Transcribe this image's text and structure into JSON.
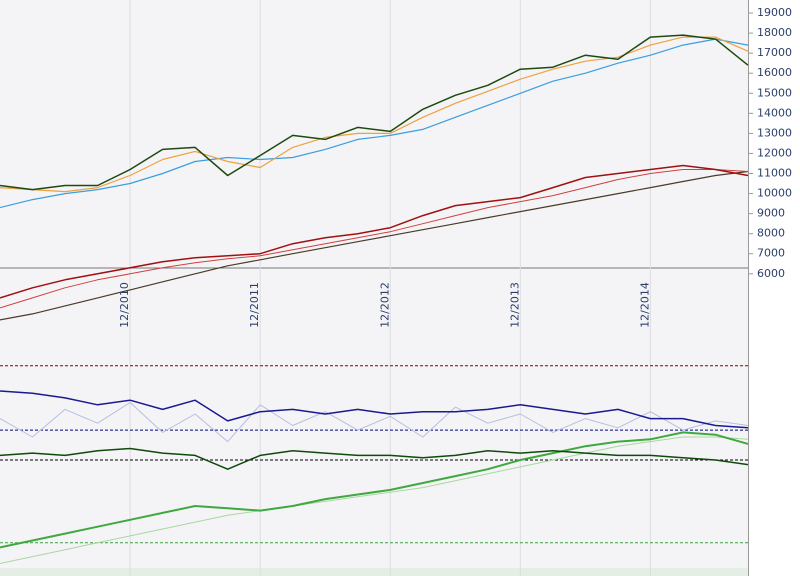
{
  "chart_data": [
    {
      "type": "line",
      "categories": [
        null,
        null,
        null,
        null,
        "12/2010",
        null,
        null,
        null,
        "12/2011",
        null,
        null,
        null,
        "12/2012",
        null,
        null,
        null,
        "12/2013",
        null,
        null,
        null,
        "12/2014",
        null,
        null,
        null
      ],
      "ylim": [
        2700,
        19650
      ],
      "yticks": [
        6000,
        7000,
        8000,
        9000,
        10000,
        11000,
        12000,
        13000,
        14000,
        15000,
        16000,
        17000,
        18000,
        19000
      ],
      "series": [
        {
          "color": "#4a3b2a",
          "width": 1.2,
          "values": [
            3700,
            4000,
            4400,
            4800,
            5200,
            5600,
            6000,
            6400,
            6700,
            7000,
            7300,
            7600,
            7900,
            8200,
            8500,
            8800,
            9100,
            9400,
            9700,
            10000,
            10300,
            10600,
            10900,
            11100
          ]
        },
        {
          "color": "#d04040",
          "width": 1,
          "values": [
            4300,
            4800,
            5300,
            5700,
            6000,
            6300,
            6550,
            6750,
            6900,
            7200,
            7500,
            7800,
            8100,
            8500,
            8900,
            9300,
            9600,
            9900,
            10300,
            10700,
            11000,
            11200,
            11200,
            11100
          ]
        },
        {
          "color": "#a01010",
          "width": 1.5,
          "values": [
            4800,
            5300,
            5700,
            6000,
            6300,
            6600,
            6800,
            6900,
            7000,
            7500,
            7800,
            8000,
            8300,
            8900,
            9400,
            9600,
            9800,
            10300,
            10800,
            11000,
            11200,
            11400,
            11200,
            10900
          ]
        },
        {
          "color": "#3a9ee0",
          "width": 1.2,
          "values": [
            9300,
            9700,
            10000,
            10200,
            10500,
            11000,
            11600,
            11800,
            11700,
            11800,
            12200,
            12700,
            12900,
            13200,
            13800,
            14400,
            15000,
            15600,
            16000,
            16500,
            16900,
            17400,
            17700,
            17400
          ]
        },
        {
          "color": "#f0a040",
          "width": 1.2,
          "values": [
            10300,
            10200,
            10100,
            10300,
            10900,
            11700,
            12100,
            11600,
            11300,
            12300,
            12800,
            13000,
            13000,
            13800,
            14500,
            15100,
            15700,
            16200,
            16600,
            16800,
            17400,
            17800,
            17800,
            17100
          ]
        },
        {
          "color": "#1e4a10",
          "width": 1.5,
          "values": [
            10400,
            10200,
            10400,
            10400,
            11200,
            12200,
            12300,
            10900,
            11900,
            12900,
            12700,
            13300,
            13100,
            14200,
            14900,
            15400,
            16200,
            16300,
            16900,
            16700,
            17800,
            17900,
            17700,
            16400
          ]
        }
      ]
    },
    {
      "type": "line",
      "ylim": [
        0,
        100
      ],
      "reference_lines": [
        {
          "value": 91,
          "color": "#800000"
        },
        {
          "value": 63,
          "color": "#000080"
        },
        {
          "value": 50,
          "color": "#000000"
        },
        {
          "value": 14,
          "color": "#3aa040"
        }
      ],
      "series": [
        {
          "color": "#b8bde0",
          "width": 1,
          "values": [
            68,
            60,
            72,
            66,
            75,
            62,
            70,
            58,
            74,
            65,
            71,
            63,
            69,
            60,
            73,
            66,
            70,
            62,
            68,
            64,
            71,
            63,
            67,
            65
          ]
        },
        {
          "color": "#a8d8a0",
          "width": 1,
          "values": [
            5,
            8,
            11,
            14,
            17,
            20,
            23,
            26,
            28,
            30,
            32,
            34,
            36,
            38,
            41,
            44,
            47,
            50,
            53,
            56,
            58,
            60,
            60,
            59
          ]
        },
        {
          "color": "#40a840",
          "width": 2,
          "values": [
            12,
            15,
            18,
            21,
            24,
            27,
            30,
            29,
            28,
            30,
            33,
            35,
            37,
            40,
            43,
            46,
            50,
            53,
            56,
            58,
            59,
            62,
            61,
            57
          ]
        },
        {
          "color": "#1a1a90",
          "width": 1.5,
          "values": [
            80,
            79,
            77,
            74,
            76,
            72,
            76,
            67,
            71,
            72,
            70,
            72,
            70,
            71,
            71,
            72,
            74,
            72,
            70,
            72,
            68,
            68,
            65,
            64
          ]
        },
        {
          "color": "#0f4a0a",
          "width": 1.5,
          "values": [
            52,
            53,
            52,
            54,
            55,
            53,
            52,
            46,
            52,
            54,
            53,
            52,
            52,
            51,
            52,
            54,
            53,
            54,
            53,
            52,
            52,
            51,
            50,
            48
          ]
        }
      ]
    }
  ]
}
